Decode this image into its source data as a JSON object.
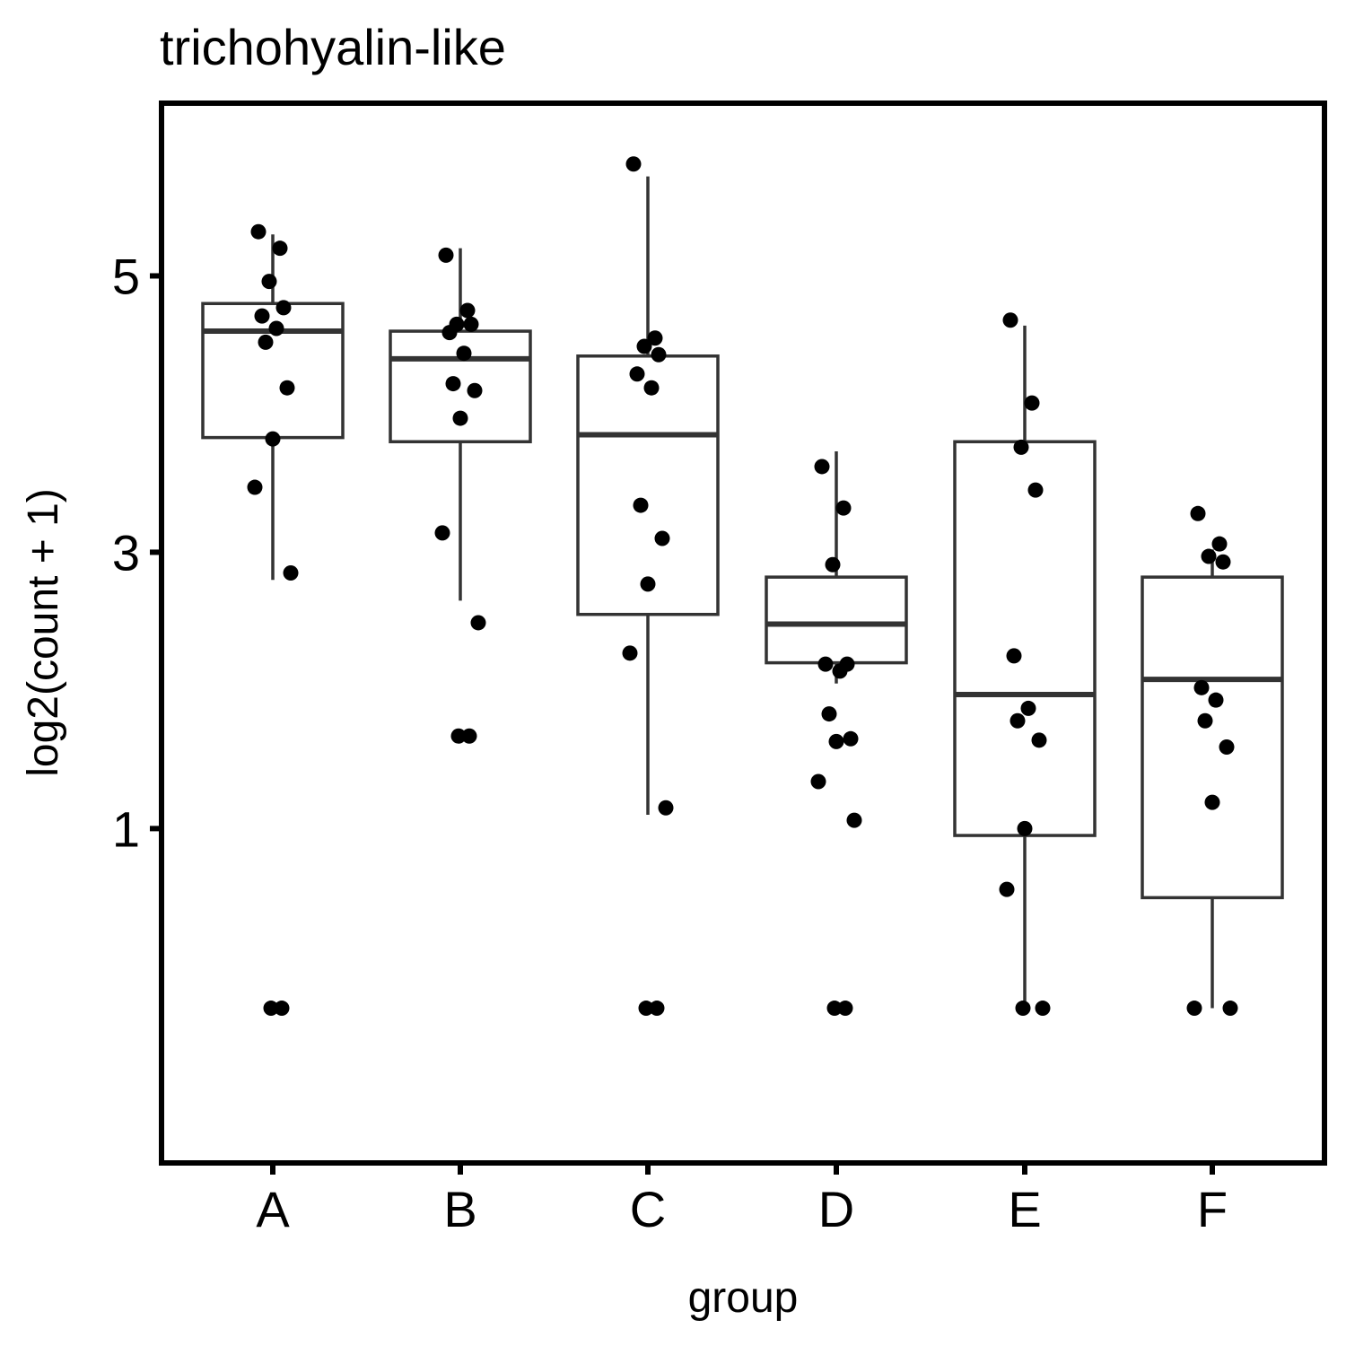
{
  "chart_data": {
    "type": "box",
    "title": "trichohyalin-like",
    "xlabel": "group",
    "ylabel": "log2(count + 1)",
    "categories": [
      "A",
      "B",
      "C",
      "D",
      "E",
      "F"
    ],
    "y_ticks": [
      1,
      3,
      5
    ],
    "ylim": [
      -1.42,
      6.25
    ],
    "grid": false,
    "legend": "none",
    "box_color": "#333333",
    "point_color": "#000000",
    "boxes": [
      {
        "group": "A",
        "lower_whisker": 2.8,
        "q1": 3.83,
        "median": 4.6,
        "q3": 4.8,
        "upper_whisker": 5.3
      },
      {
        "group": "B",
        "lower_whisker": 2.65,
        "q1": 3.8,
        "median": 4.4,
        "q3": 4.6,
        "upper_whisker": 5.2
      },
      {
        "group": "C",
        "lower_whisker": 1.1,
        "q1": 2.55,
        "median": 3.85,
        "q3": 4.42,
        "upper_whisker": 5.72
      },
      {
        "group": "D",
        "lower_whisker": 2.05,
        "q1": 2.2,
        "median": 2.48,
        "q3": 2.82,
        "upper_whisker": 3.73
      },
      {
        "group": "E",
        "lower_whisker": -0.3,
        "q1": 0.95,
        "median": 1.97,
        "q3": 3.8,
        "upper_whisker": 4.64
      },
      {
        "group": "F",
        "lower_whisker": -0.3,
        "q1": 0.5,
        "median": 2.08,
        "q3": 2.82,
        "upper_whisker": 3.02
      }
    ],
    "points": {
      "A": [
        5.32,
        5.2,
        4.96,
        4.77,
        4.71,
        4.62,
        4.52,
        4.19,
        3.82,
        3.47,
        2.85,
        -0.3,
        -0.3
      ],
      "B": [
        5.15,
        4.75,
        4.65,
        4.65,
        4.59,
        4.44,
        4.22,
        4.17,
        3.97,
        3.14,
        2.49,
        1.67,
        1.67
      ],
      "C": [
        5.81,
        4.55,
        4.49,
        4.43,
        4.29,
        4.19,
        3.34,
        3.1,
        2.77,
        2.27,
        1.15,
        -0.3,
        -0.3
      ],
      "D": [
        3.62,
        3.32,
        2.91,
        2.19,
        2.19,
        2.14,
        1.83,
        1.65,
        1.63,
        1.34,
        1.06,
        -0.3,
        -0.3
      ],
      "E": [
        4.68,
        4.08,
        3.76,
        3.45,
        2.25,
        1.87,
        1.78,
        1.64,
        1.0,
        0.56,
        -0.3,
        -0.3
      ],
      "F": [
        3.28,
        3.06,
        2.97,
        2.93,
        2.02,
        1.93,
        1.78,
        1.59,
        1.19,
        -0.3,
        -0.3
      ]
    }
  }
}
